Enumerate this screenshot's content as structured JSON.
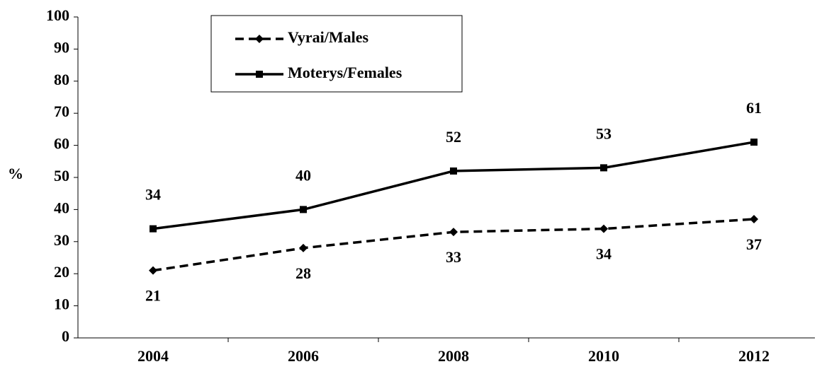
{
  "chart_data": {
    "type": "line",
    "y_label": "%",
    "categories": [
      "2004",
      "2006",
      "2008",
      "2010",
      "2012"
    ],
    "series": [
      {
        "name": "Vyrai/Males",
        "color": "#000000",
        "line_style": "dashed",
        "marker": "diamond",
        "label_position": "below",
        "values": [
          21,
          28,
          33,
          34,
          37
        ]
      },
      {
        "name": "Moterys/Females",
        "color": "#000000",
        "line_style": "solid",
        "marker": "square",
        "label_position": "above",
        "values": [
          34,
          40,
          52,
          53,
          61
        ]
      }
    ],
    "ylim": [
      0,
      100
    ],
    "yticks": [
      0,
      10,
      20,
      30,
      40,
      50,
      60,
      70,
      80,
      90,
      100
    ],
    "legend": "top-left"
  }
}
